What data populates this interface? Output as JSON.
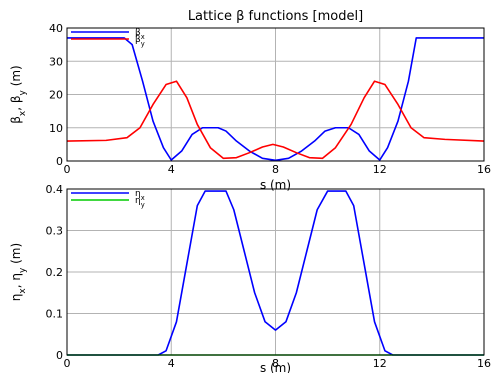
{
  "chart_data": [
    {
      "type": "line",
      "title": "Lattice β functions [model]",
      "xlabel": "s (m)",
      "ylabel": "β_x, β_y (m)",
      "xlim": [
        0,
        16
      ],
      "ylim": [
        0,
        40
      ],
      "xticks": [
        "0",
        "4",
        "8",
        "12",
        "16"
      ],
      "yticks": [
        "0",
        "10",
        "20",
        "30",
        "40"
      ],
      "grid": true,
      "legend": "top-left",
      "series": [
        {
          "name": "β_x",
          "color": "#0000ff",
          "x": [
            0,
            2.2,
            2.5,
            2.9,
            3.3,
            3.7,
            4.0,
            4.4,
            4.8,
            5.2,
            5.8,
            6.1,
            6.5,
            7.0,
            7.5,
            8.0,
            8.5,
            9.0,
            9.5,
            9.9,
            10.3,
            10.8,
            11.2,
            11.6,
            12.0,
            12.3,
            12.7,
            13.1,
            13.4,
            16
          ],
          "y": [
            37,
            37,
            35,
            24,
            12,
            4,
            0.3,
            3,
            8,
            10,
            10,
            9,
            6,
            3,
            0.8,
            0.2,
            0.8,
            3,
            6,
            9,
            10,
            10,
            8,
            3,
            0.3,
            4,
            12,
            24,
            37,
            37
          ]
        },
        {
          "name": "β_y",
          "color": "#ff0000",
          "x": [
            0,
            1.5,
            2.3,
            2.8,
            3.3,
            3.8,
            4.2,
            4.6,
            5.0,
            5.5,
            6.0,
            6.5,
            7.0,
            7.5,
            7.9,
            8.3,
            8.8,
            9.3,
            9.8,
            10.3,
            10.9,
            11.4,
            11.8,
            12.2,
            12.7,
            13.2,
            13.7,
            14.5,
            16
          ],
          "y": [
            6,
            6.2,
            7,
            10,
            17,
            23,
            24,
            19,
            11,
            4,
            0.8,
            1,
            2.5,
            4.2,
            5,
            4.2,
            2.5,
            1,
            0.8,
            4,
            11,
            19,
            24,
            23,
            17,
            10,
            7,
            6.5,
            6
          ]
        }
      ]
    },
    {
      "type": "line",
      "title": "",
      "xlabel": "s (m)",
      "ylabel": "η_x, η_y (m)",
      "xlim": [
        0,
        16
      ],
      "ylim": [
        0,
        0.4
      ],
      "xticks": [
        "0",
        "4",
        "8",
        "12",
        "16"
      ],
      "yticks": [
        "0",
        "0.1",
        "0.2",
        "0.3",
        "0.4"
      ],
      "grid": true,
      "legend": "top-left",
      "series": [
        {
          "name": "η_x",
          "color": "#0000ff",
          "x": [
            0,
            3.5,
            3.8,
            4.2,
            4.6,
            5.0,
            5.3,
            6.1,
            6.4,
            6.8,
            7.2,
            7.6,
            8.0,
            8.4,
            8.8,
            9.2,
            9.6,
            10.0,
            10.7,
            11.0,
            11.4,
            11.8,
            12.2,
            12.5,
            16
          ],
          "y": [
            0,
            0,
            0.01,
            0.08,
            0.22,
            0.36,
            0.395,
            0.395,
            0.35,
            0.25,
            0.15,
            0.08,
            0.06,
            0.08,
            0.15,
            0.25,
            0.35,
            0.395,
            0.395,
            0.36,
            0.22,
            0.08,
            0.01,
            0,
            0
          ]
        },
        {
          "name": "η_y",
          "color": "#00cc00",
          "x": [
            0,
            16
          ],
          "y": [
            0,
            0
          ]
        }
      ]
    }
  ]
}
